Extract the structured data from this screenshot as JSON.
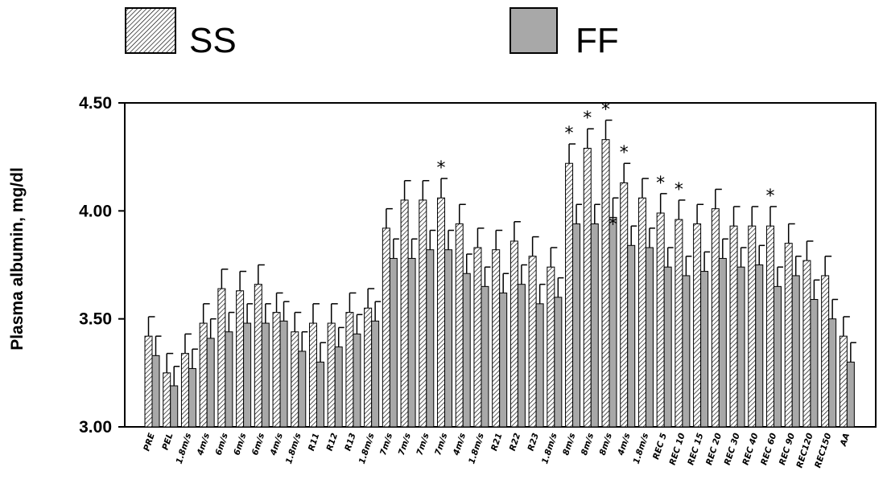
{
  "legend": {
    "ss_label": "SS",
    "ff_label": "FF"
  },
  "colors": {
    "ff_fill": "#a8a8a8",
    "ss_hatch": "#000000",
    "background": "#ffffff"
  },
  "chart_data": {
    "type": "bar",
    "ylabel": "Plasma albumin, mg/dl",
    "xlabel": "",
    "ylim": [
      3.0,
      4.5
    ],
    "yticks": [
      "3.00",
      "3.50",
      "4.00",
      "4.50"
    ],
    "ytick_values": [
      3.0,
      3.5,
      4.0,
      4.5
    ],
    "legend_position": "top",
    "categories": [
      "PRE",
      "PEL",
      "1.8m/s",
      "4m/s",
      "6m/s",
      "6m/s",
      "6m/s",
      "4m/s",
      "1.8m/s",
      "R11",
      "R12",
      "R13",
      "1.8m/s",
      "7m/s",
      "7m/s",
      "7m/s",
      "7m/s",
      "4m/s",
      "1.8m/s",
      "R21",
      "R22",
      "R23",
      "1.8m/s",
      "8m/s",
      "8m/s",
      "8m/s",
      "4m/s",
      "1.8m/s",
      "REC 5",
      "REC 10",
      "REC 15",
      "REC 20",
      "REC 30",
      "REC 40",
      "REC 60",
      "REC 90",
      "REC120",
      "REC150",
      "AA"
    ],
    "series": [
      {
        "name": "SS",
        "values": [
          3.42,
          3.25,
          3.34,
          3.48,
          3.64,
          3.63,
          3.66,
          3.53,
          3.44,
          3.48,
          3.48,
          3.53,
          3.55,
          3.92,
          4.05,
          4.05,
          4.06,
          3.94,
          3.83,
          3.82,
          3.86,
          3.79,
          3.74,
          4.22,
          4.29,
          4.33,
          4.13,
          4.06,
          3.99,
          3.96,
          3.94,
          4.01,
          3.93,
          3.93,
          3.93,
          3.85,
          3.77,
          3.7,
          3.42
        ],
        "errors": [
          0.09,
          0.09,
          0.09,
          0.09,
          0.09,
          0.09,
          0.09,
          0.09,
          0.09,
          0.09,
          0.09,
          0.09,
          0.09,
          0.09,
          0.09,
          0.09,
          0.09,
          0.09,
          0.09,
          0.09,
          0.09,
          0.09,
          0.09,
          0.09,
          0.09,
          0.09,
          0.09,
          0.09,
          0.09,
          0.09,
          0.09,
          0.09,
          0.09,
          0.09,
          0.09,
          0.09,
          0.09,
          0.09,
          0.09
        ]
      },
      {
        "name": "FF",
        "values": [
          3.33,
          3.19,
          3.27,
          3.41,
          3.44,
          3.48,
          3.48,
          3.49,
          3.35,
          3.3,
          3.37,
          3.43,
          3.49,
          3.78,
          3.78,
          3.82,
          3.82,
          3.71,
          3.65,
          3.62,
          3.66,
          3.57,
          3.6,
          3.94,
          3.94,
          3.97,
          3.84,
          3.83,
          3.74,
          3.7,
          3.72,
          3.78,
          3.74,
          3.75,
          3.65,
          3.7,
          3.59,
          3.5,
          3.3
        ],
        "errors": [
          0.09,
          0.09,
          0.09,
          0.09,
          0.09,
          0.09,
          0.09,
          0.09,
          0.09,
          0.09,
          0.09,
          0.09,
          0.09,
          0.09,
          0.09,
          0.09,
          0.09,
          0.09,
          0.09,
          0.09,
          0.09,
          0.09,
          0.09,
          0.09,
          0.09,
          0.09,
          0.09,
          0.09,
          0.09,
          0.09,
          0.09,
          0.09,
          0.09,
          0.09,
          0.09,
          0.09,
          0.09,
          0.09,
          0.09
        ]
      }
    ],
    "annotations": [
      {
        "category_index": 16,
        "series": "SS",
        "text": "*"
      },
      {
        "category_index": 23,
        "series": "SS",
        "text": "*"
      },
      {
        "category_index": 24,
        "series": "SS",
        "text": "*"
      },
      {
        "category_index": 25,
        "series": "SS",
        "text": "*"
      },
      {
        "category_index": 25,
        "series": "FF",
        "text": "*"
      },
      {
        "category_index": 26,
        "series": "SS",
        "text": "*"
      },
      {
        "category_index": 28,
        "series": "SS",
        "text": "*"
      },
      {
        "category_index": 29,
        "series": "SS",
        "text": "*"
      },
      {
        "category_index": 34,
        "series": "SS",
        "text": "*"
      }
    ]
  }
}
